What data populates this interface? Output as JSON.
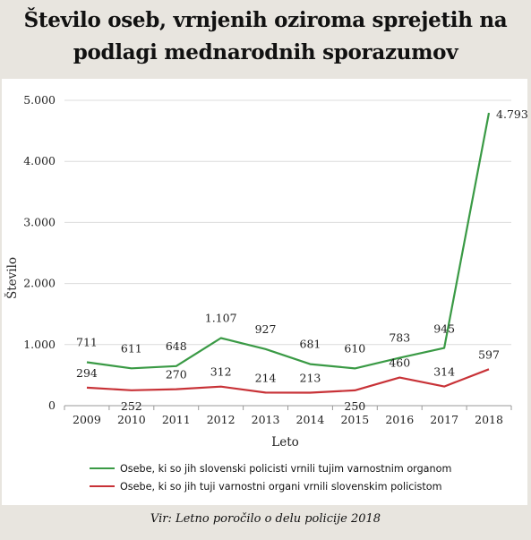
{
  "title_line1": "Število oseb, vrnjenih oziroma sprejetih na",
  "title_line2": "podlagi mednarodnih sporazumov",
  "source": "Vir: Letno poročilo o delu policije 2018",
  "colors": {
    "series1": "#3a9a45",
    "series2": "#c83237",
    "grid": "#dcdcdc",
    "axis": "#9a9a9a"
  },
  "chart_data": {
    "type": "line",
    "title": "Število oseb, vrnjenih oziroma sprejetih na podlagi mednarodnih sporazumov",
    "xlabel": "Leto",
    "ylabel": "Število",
    "ylim": [
      0,
      5000
    ],
    "yticks": [
      0,
      1000,
      2000,
      3000,
      4000,
      5000
    ],
    "ytick_labels": [
      "0",
      "1.000",
      "2.000",
      "3.000",
      "4.000",
      "5.000"
    ],
    "grid": true,
    "legend_position": "bottom",
    "x": [
      "2009",
      "2010",
      "2011",
      "2012",
      "2013",
      "2014",
      "2015",
      "2016",
      "2017",
      "2018"
    ],
    "series": [
      {
        "name": "Osebe, ki so jih slovenski policisti vrnili tujim varnostnim organom",
        "values": [
          711,
          611,
          648,
          1107,
          927,
          681,
          610,
          783,
          945,
          4793
        ],
        "labels": [
          "711",
          "611",
          "648",
          "1.107",
          "927",
          "681",
          "610",
          "783",
          "945",
          "4.793"
        ],
        "color": "#3a9a45"
      },
      {
        "name": "Osebe, ki so jih tuji varnostni organi vrnili  slovenskim policistom",
        "values": [
          294,
          252,
          270,
          312,
          214,
          213,
          250,
          460,
          314,
          597
        ],
        "labels": [
          "294",
          "252",
          "270",
          "312",
          "214",
          "213",
          "250",
          "460",
          "314",
          "597"
        ],
        "color": "#c83237"
      }
    ]
  }
}
